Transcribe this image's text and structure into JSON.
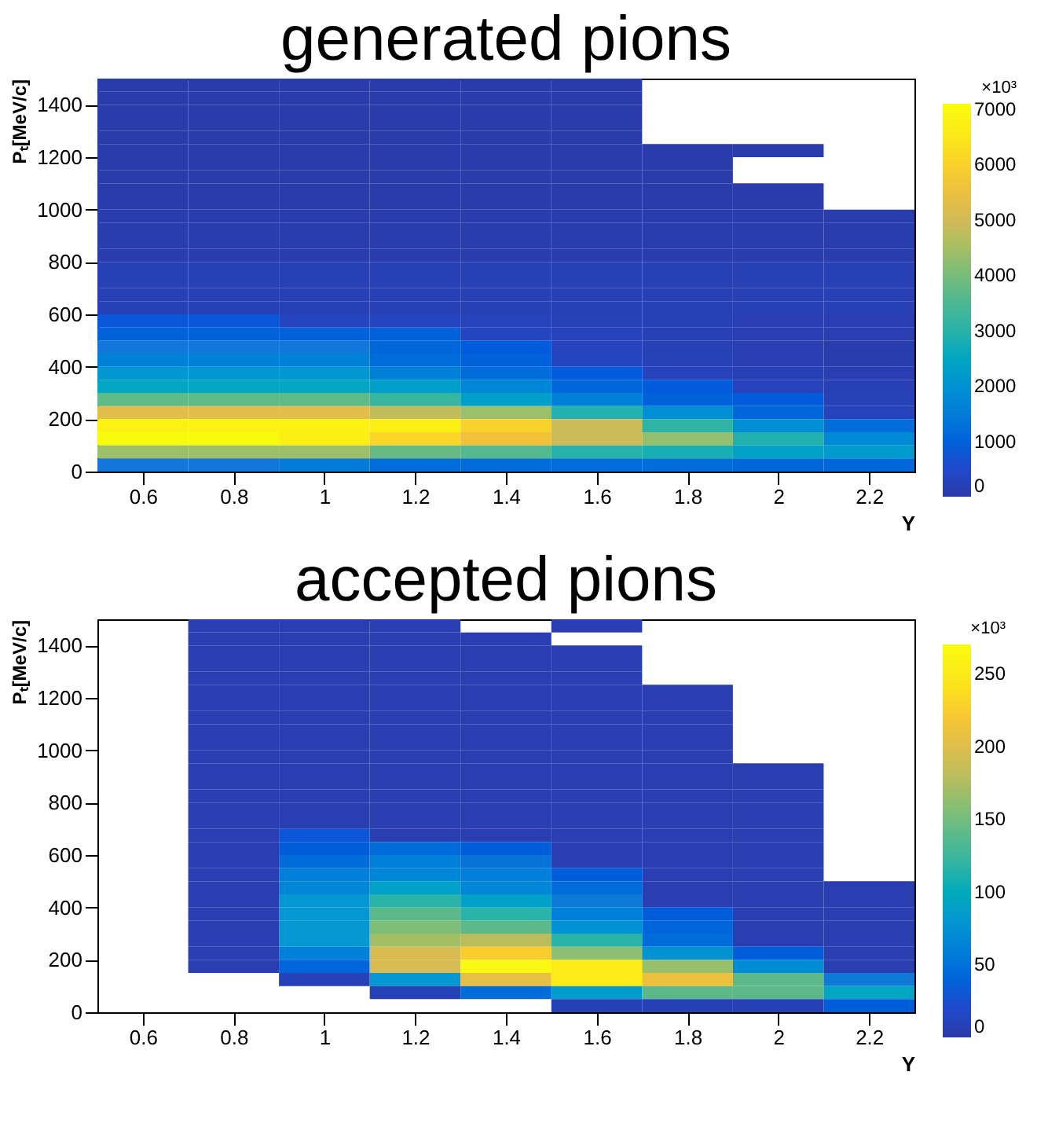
{
  "chart_data": [
    {
      "type": "heatmap",
      "title": "generated pions",
      "xlabel": "Y",
      "ylabel": "Pₜ[MeV/c]",
      "clabel": "×10³",
      "x": [
        0.6,
        0.8,
        1.0,
        1.2,
        1.4,
        1.6,
        1.8,
        2.0,
        2.2
      ],
      "y": [
        1475,
        1425,
        1375,
        1325,
        1275,
        1225,
        1175,
        1125,
        1075,
        1025,
        975,
        925,
        875,
        825,
        775,
        725,
        675,
        625,
        575,
        525,
        475,
        425,
        375,
        325,
        275,
        225,
        175,
        125,
        75,
        25
      ],
      "cells": [
        [
          50,
          50,
          50,
          50,
          50,
          50,
          null,
          null,
          null
        ],
        [
          50,
          50,
          50,
          50,
          50,
          50,
          null,
          null,
          null
        ],
        [
          50,
          50,
          50,
          50,
          50,
          50,
          null,
          null,
          null
        ],
        [
          50,
          50,
          50,
          50,
          50,
          50,
          null,
          null,
          null
        ],
        [
          50,
          50,
          50,
          50,
          50,
          50,
          null,
          null,
          null
        ],
        [
          50,
          50,
          50,
          50,
          50,
          50,
          50,
          50,
          null
        ],
        [
          50,
          50,
          50,
          50,
          50,
          50,
          50,
          null,
          null
        ],
        [
          50,
          50,
          50,
          50,
          50,
          50,
          50,
          null,
          null
        ],
        [
          50,
          50,
          50,
          50,
          50,
          50,
          50,
          50,
          null
        ],
        [
          50,
          50,
          50,
          50,
          50,
          50,
          50,
          50,
          null
        ],
        [
          100,
          100,
          100,
          100,
          100,
          100,
          100,
          100,
          100
        ],
        [
          100,
          100,
          100,
          100,
          100,
          100,
          100,
          100,
          100
        ],
        [
          100,
          100,
          100,
          100,
          100,
          100,
          100,
          100,
          100
        ],
        [
          100,
          100,
          100,
          100,
          100,
          100,
          100,
          100,
          100
        ],
        [
          200,
          200,
          200,
          200,
          200,
          200,
          200,
          200,
          200
        ],
        [
          200,
          200,
          200,
          200,
          200,
          200,
          200,
          200,
          200
        ],
        [
          200,
          200,
          200,
          200,
          200,
          200,
          200,
          200,
          200
        ],
        [
          200,
          200,
          200,
          200,
          200,
          200,
          200,
          200,
          200
        ],
        [
          800,
          800,
          350,
          350,
          300,
          250,
          200,
          150,
          150
        ],
        [
          1000,
          1000,
          1000,
          1000,
          350,
          300,
          200,
          150,
          120
        ],
        [
          1400,
          1400,
          1400,
          1100,
          900,
          300,
          200,
          120,
          80
        ],
        [
          1600,
          1600,
          1600,
          1200,
          1000,
          350,
          250,
          150,
          100
        ],
        [
          2100,
          2100,
          2100,
          1600,
          1200,
          900,
          300,
          200,
          150
        ],
        [
          2500,
          2500,
          2500,
          2300,
          1700,
          1100,
          900,
          300,
          200
        ],
        [
          3700,
          3700,
          3700,
          3200,
          2300,
          1600,
          1000,
          900,
          250
        ],
        [
          5300,
          5300,
          5300,
          4800,
          4400,
          2900,
          1900,
          1100,
          300
        ],
        [
          6800,
          6800,
          6800,
          6700,
          6000,
          4900,
          3100,
          1900,
          1200
        ],
        [
          7100,
          7100,
          6700,
          6100,
          5600,
          4900,
          4300,
          2900,
          1800
        ],
        [
          4400,
          4400,
          4400,
          3800,
          3600,
          3000,
          2800,
          2400,
          2200
        ],
        [
          1400,
          1400,
          1500,
          1200,
          1200,
          1200,
          1200,
          1100,
          1100
        ]
      ],
      "xlim": [
        0.5,
        2.3
      ],
      "xticks": [
        0.6,
        0.8,
        1,
        1.2,
        1.4,
        1.6,
        1.8,
        2,
        2.2
      ],
      "ylim": [
        0,
        1500
      ],
      "yticks": [
        0,
        200,
        400,
        600,
        800,
        1000,
        1200,
        1400
      ],
      "clim": [
        0,
        7100
      ],
      "cticks": [
        0,
        1000,
        2000,
        3000,
        4000,
        5000,
        6000,
        7000
      ],
      "grid": false
    },
    {
      "type": "heatmap",
      "title": "accepted pions",
      "xlabel": "Y",
      "ylabel": "Pₜ[MeV/c]",
      "clabel": "×10³",
      "x": [
        0.6,
        0.8,
        1.0,
        1.2,
        1.4,
        1.6,
        1.8,
        2.0,
        2.2
      ],
      "y": [
        1475,
        1425,
        1375,
        1325,
        1275,
        1225,
        1175,
        1125,
        1075,
        1025,
        975,
        925,
        875,
        825,
        775,
        725,
        675,
        625,
        575,
        525,
        475,
        425,
        375,
        325,
        275,
        225,
        175,
        125,
        75,
        25
      ],
      "cells": [
        [
          null,
          5,
          5,
          5,
          null,
          5,
          null,
          null,
          null
        ],
        [
          null,
          5,
          5,
          5,
          5,
          null,
          null,
          null,
          null
        ],
        [
          null,
          5,
          5,
          5,
          5,
          5,
          null,
          null,
          null
        ],
        [
          null,
          5,
          5,
          5,
          5,
          5,
          null,
          null,
          null
        ],
        [
          null,
          5,
          5,
          5,
          5,
          5,
          null,
          null,
          null
        ],
        [
          null,
          5,
          5,
          5,
          5,
          5,
          5,
          null,
          null
        ],
        [
          null,
          5,
          5,
          5,
          5,
          5,
          5,
          null,
          null
        ],
        [
          null,
          5,
          5,
          5,
          5,
          5,
          5,
          null,
          null
        ],
        [
          null,
          5,
          5,
          5,
          5,
          5,
          5,
          null,
          null
        ],
        [
          null,
          5,
          5,
          5,
          5,
          5,
          5,
          null,
          null
        ],
        [
          null,
          5,
          5,
          5,
          5,
          5,
          5,
          null,
          null
        ],
        [
          null,
          5,
          5,
          5,
          5,
          5,
          5,
          5,
          null
        ],
        [
          null,
          5,
          5,
          5,
          5,
          5,
          5,
          5,
          null
        ],
        [
          null,
          5,
          5,
          5,
          5,
          5,
          5,
          5,
          null
        ],
        [
          null,
          5,
          5,
          5,
          5,
          5,
          5,
          5,
          null
        ],
        [
          null,
          5,
          5,
          5,
          5,
          5,
          5,
          5,
          null
        ],
        [
          null,
          5,
          30,
          5,
          5,
          5,
          5,
          5,
          null
        ],
        [
          null,
          5,
          35,
          45,
          35,
          5,
          5,
          5,
          null
        ],
        [
          null,
          5,
          45,
          60,
          50,
          5,
          5,
          5,
          null
        ],
        [
          null,
          5,
          60,
          65,
          60,
          35,
          5,
          5,
          null
        ],
        [
          null,
          5,
          65,
          90,
          65,
          45,
          5,
          5,
          5
        ],
        [
          null,
          5,
          80,
          115,
          90,
          55,
          5,
          5,
          5
        ],
        [
          null,
          5,
          80,
          140,
          115,
          60,
          35,
          5,
          5
        ],
        [
          null,
          5,
          80,
          155,
          140,
          75,
          40,
          5,
          5
        ],
        [
          null,
          5,
          80,
          170,
          180,
          115,
          45,
          5,
          5
        ],
        [
          null,
          5,
          60,
          195,
          225,
          160,
          75,
          35,
          5
        ],
        [
          null,
          5,
          40,
          195,
          265,
          250,
          165,
          70,
          5
        ],
        [
          null,
          null,
          10,
          80,
          205,
          250,
          210,
          140,
          55
        ],
        [
          null,
          null,
          null,
          10,
          45,
          85,
          140,
          140,
          95
        ],
        [
          null,
          null,
          null,
          null,
          null,
          8,
          8,
          8,
          35
        ]
      ],
      "xlim": [
        0.5,
        2.3
      ],
      "xticks": [
        0.6,
        0.8,
        1,
        1.2,
        1.4,
        1.6,
        1.8,
        2,
        2.2
      ],
      "ylim": [
        0,
        1500
      ],
      "yticks": [
        0,
        200,
        400,
        600,
        800,
        1000,
        1200,
        1400
      ],
      "clim": [
        0,
        270
      ],
      "cticks": [
        0,
        50,
        100,
        150,
        200,
        250
      ],
      "grid": false
    }
  ]
}
